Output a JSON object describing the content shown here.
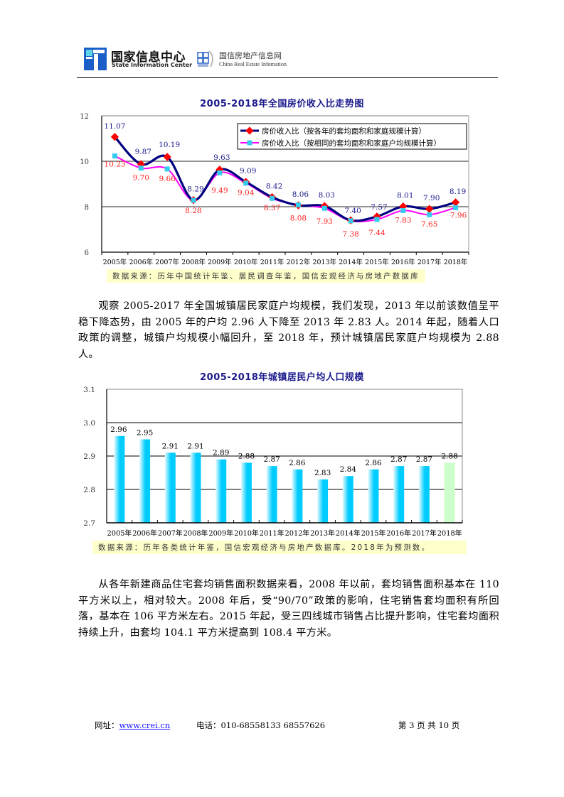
{
  "header": {
    "org1_cn": "国家信息中心",
    "org1_en": "State Information Center",
    "org2_cn": "国信房地产信息网",
    "org2_en": "China Real Estate Infomation",
    "icons": [
      "state-information-center-logo",
      "crei-logo"
    ]
  },
  "chart1": {
    "title": "2005-2018年全国房价收入比走势图",
    "source": "数据来源：历年中国统计年鉴、居民调查年鉴，国信宏观经济与房地产数据库"
  },
  "paragraph1": "观察 2005-2017 年全国城镇居民家庭户均规模，我们发现，2013 年以前该数值呈平稳下降态势，由 2005 年的户均 2.96 人下降至 2013 年 2.83 人。2014 年起，随着人口政策的调整，城镇户均规模小幅回升，至 2018 年，预计城镇居民家庭户均规模为 2.88 人。",
  "chart2": {
    "title": "2005-2018年城镇居民户均人口规模",
    "source": "数据来源：历年各类统计年鉴，国信宏观经济与房地产数据库。2018年为预测数。"
  },
  "paragraph2": "从各年新建商品住宅套均销售面积数据来看，2008 年以前，套均销售面积基本在 110 平方米以上，相对较大。2008 年后，受“90/70”政策的影响，住宅销售套均面积有所回落，基本在 106 平方米左右。2015 年起，受三四线城市销售占比提升影响，住宅套均面积持续上升，由套均 104.1 平方米提高到 108.4 平方米。",
  "footer": {
    "website_label": "网址：",
    "website": "www.crei.cn",
    "phone_label": "电话：",
    "phone": "010-68558133 68557626",
    "page": "第 3 页 共 10 页"
  },
  "chart_data": [
    {
      "type": "line",
      "title": "2005-2018年全国房价收入比走势图",
      "xlabel": "",
      "ylabel": "",
      "categories": [
        "2005年",
        "2006年",
        "2007年",
        "2008年",
        "2009年",
        "2010年",
        "2011年",
        "2012年",
        "2013年",
        "2014年",
        "2015年",
        "2016年",
        "2017年",
        "2018年"
      ],
      "series": [
        {
          "name": "房价收入比（按各年的套均面积和家庭规模计算）",
          "color": "#000080",
          "marker": "diamond",
          "marker_color": "#ff0000",
          "label_color": "#1a1a8c",
          "values": [
            11.07,
            9.87,
            10.19,
            8.29,
            9.63,
            9.09,
            8.42,
            8.06,
            8.03,
            7.4,
            7.57,
            8.01,
            7.9,
            8.19
          ]
        },
        {
          "name": "房价收入比（按相同的套均面积和家庭户均规模计算）",
          "color": "#ff00ff",
          "marker": "square",
          "marker_color": "#33ccee",
          "label_color": "#ff2020",
          "values": [
            10.23,
            9.7,
            9.66,
            8.28,
            9.49,
            9.04,
            8.37,
            8.08,
            7.93,
            7.38,
            7.44,
            7.83,
            7.65,
            7.96
          ]
        }
      ],
      "yticks": [
        6,
        8,
        10,
        12
      ],
      "ylim": [
        6,
        12
      ],
      "grid": true,
      "legend_position": "top-right"
    },
    {
      "type": "bar",
      "title": "2005-2018年城镇居民户均人口规模",
      "xlabel": "",
      "ylabel": "",
      "categories": [
        "2005年",
        "2006年",
        "2007年",
        "2008年",
        "2009年",
        "2010年",
        "2011年",
        "2012年",
        "2013年",
        "2014年",
        "2015年",
        "2016年",
        "2017年",
        "2018年"
      ],
      "values": [
        2.96,
        2.95,
        2.91,
        2.91,
        2.89,
        2.88,
        2.87,
        2.86,
        2.83,
        2.84,
        2.86,
        2.87,
        2.87,
        2.88
      ],
      "bar_colors": {
        "actual": "#00ccff",
        "forecast": "#ccffcc"
      },
      "forecast_index": 13,
      "yticks": [
        "2.7",
        "2.8",
        "2.9",
        "3.0",
        "3.1"
      ],
      "ylim": [
        2.7,
        3.1
      ],
      "grid": true,
      "legend_position": "none"
    }
  ]
}
